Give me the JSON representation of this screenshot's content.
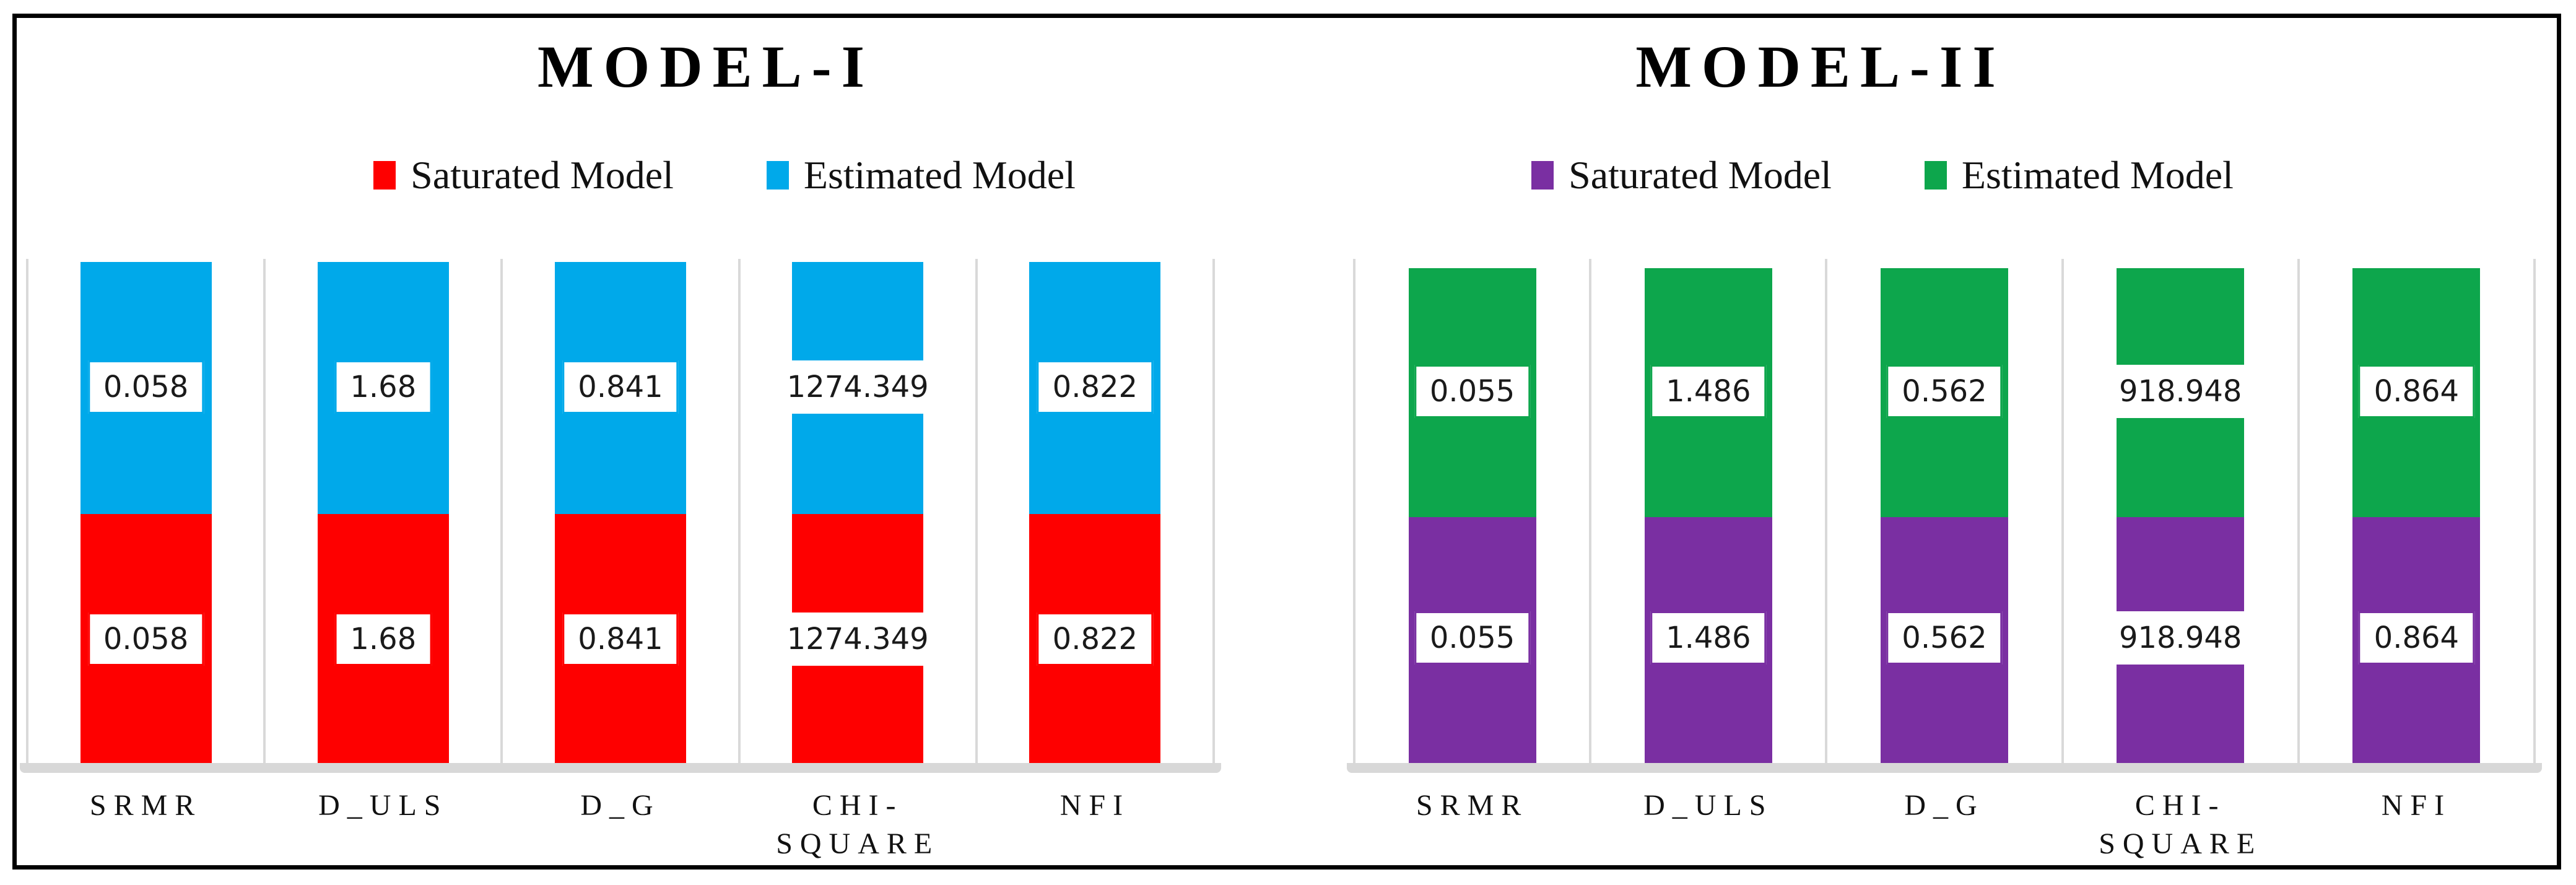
{
  "frame": {
    "border_color": "#000000",
    "background": "#ffffff"
  },
  "chart_data": [
    {
      "type": "bar",
      "stacked": true,
      "title": "MODEL-I",
      "legend_position": "top",
      "grid": "vertical-category-separators",
      "xlabel": "",
      "ylabel": "",
      "categories": [
        "SRMR",
        "D_ULS",
        "D_G",
        "CHI-SQUARE",
        "NFI"
      ],
      "category_display": [
        [
          "SRMR"
        ],
        [
          "D_ULS"
        ],
        [
          "D_G"
        ],
        [
          "CHI-",
          "SQUARE"
        ],
        [
          "NFI"
        ]
      ],
      "series": [
        {
          "name": "Saturated Model",
          "color": "#fe0000",
          "values": [
            0.058,
            1.68,
            0.841,
            1274.349,
            0.822
          ]
        },
        {
          "name": "Estimated Model",
          "color": "#00a9ea",
          "values": [
            0.058,
            1.68,
            0.841,
            1274.349,
            0.822
          ]
        }
      ],
      "value_label_background": "#ffffff",
      "value_label_text_color": "#1a1a1a",
      "gridline_color": "#d9d9d9",
      "axis_band_color": "#d8d8d8"
    },
    {
      "type": "bar",
      "stacked": true,
      "title": "MODEL-II",
      "legend_position": "top",
      "grid": "vertical-category-separators",
      "xlabel": "",
      "ylabel": "",
      "categories": [
        "SRMR",
        "D_ULS",
        "D_G",
        "CHI-SQUARE",
        "NFI"
      ],
      "category_display": [
        [
          "SRMR"
        ],
        [
          "D_ULS"
        ],
        [
          "D_G"
        ],
        [
          "CHI-",
          "SQUARE"
        ],
        [
          "NFI"
        ]
      ],
      "series": [
        {
          "name": "Saturated Model",
          "color": "#7a2fa2",
          "values": [
            0.055,
            1.486,
            0.562,
            918.948,
            0.864
          ]
        },
        {
          "name": "Estimated Model",
          "color": "#0da64c",
          "values": [
            0.055,
            1.486,
            0.562,
            918.948,
            0.864
          ]
        }
      ],
      "value_label_background": "#ffffff",
      "value_label_text_color": "#1a1a1a",
      "gridline_color": "#d9d9d9",
      "axis_band_color": "#d8d8d8"
    }
  ]
}
